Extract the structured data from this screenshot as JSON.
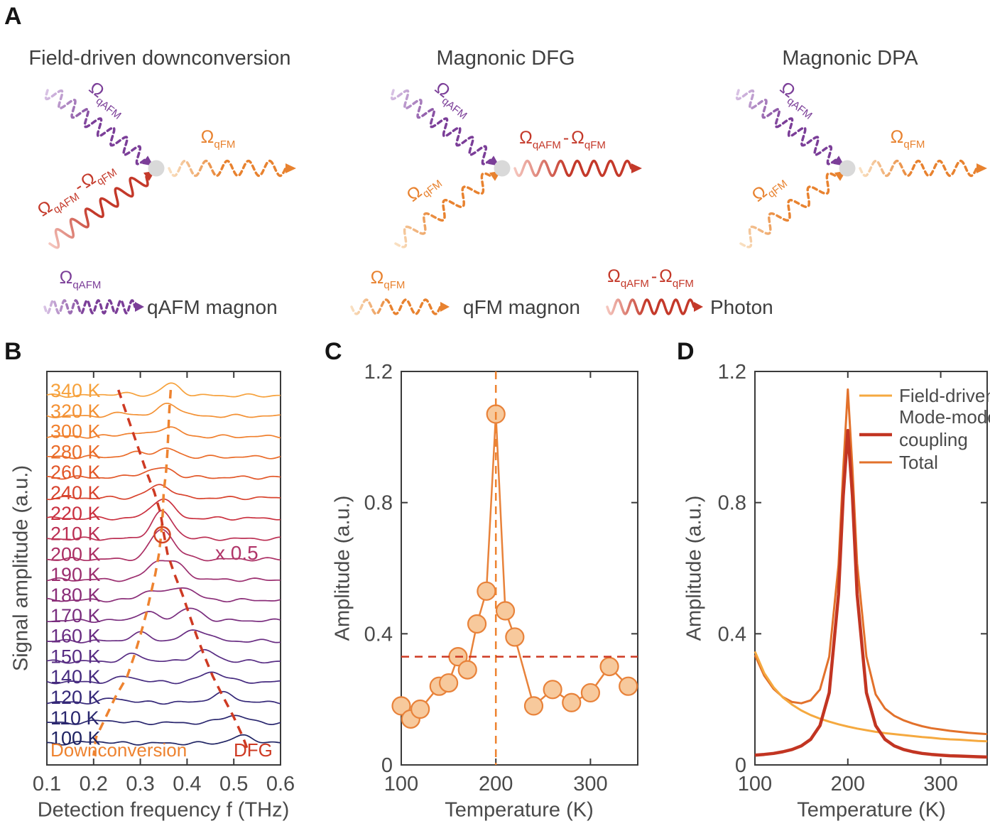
{
  "panels": {
    "a": "A",
    "b": "B",
    "c": "C",
    "d": "D"
  },
  "panelA": {
    "diagrams": [
      {
        "title": "Field-driven downconversion",
        "in_top": "qafm",
        "in_bottom": "photon",
        "out": "qfm"
      },
      {
        "title": "Magnonic DFG",
        "in_top": "qafm",
        "in_bottom": "qfm",
        "out": "photon"
      },
      {
        "title": "Magnonic DPA",
        "in_top": "qafm",
        "in_bottom": "qfm",
        "out": "qfm"
      }
    ],
    "sym": {
      "omega": "Ω",
      "sub_qafm": "qAFM",
      "sub_qfm": "qFM",
      "minus": "-"
    },
    "legend": [
      {
        "wave": "qafm",
        "text": "qAFM magnon"
      },
      {
        "wave": "qfm",
        "text": "qFM magnon"
      },
      {
        "wave": "photon",
        "text": "Photon"
      }
    ],
    "colors": {
      "qafm": "#7B3E98",
      "qafm_light": "#D9C3E5",
      "qfm": "#E8822F",
      "qfm_light": "#F9E0C2",
      "photon": "#C4392A",
      "photon_light": "#F5C6BE",
      "vertex": "#D9D9D9"
    }
  },
  "chart_data": [
    {
      "id": "B",
      "type": "line",
      "waterfall": true,
      "xlabel": "Detection frequency f (THz)",
      "ylabel": "Signal amplitude (a.u.)",
      "xlim": [
        0.1,
        0.6
      ],
      "xticks": [
        0.1,
        0.2,
        0.3,
        0.4,
        0.5,
        0.6
      ],
      "xtick_labels": [
        "0.1",
        "0.2",
        "0.3",
        "0.4",
        "0.5",
        "0.6"
      ],
      "tick_marks_x": [
        0.2,
        0.3,
        0.4,
        0.5
      ],
      "annotations": {
        "downconversion": "Downconversion",
        "dfg": "DFG",
        "scale_note": "x 0.5",
        "scale_note_applies_to": "200 K"
      },
      "guide_colors": {
        "downconversion": "#EE8330",
        "dfg": "#CE3A23"
      },
      "traces": [
        {
          "label": "340 K",
          "color": "#F6A13B",
          "dc_freq_THz": 0.365,
          "dfg_freq_THz": 0.253,
          "dc_amp": 0.56,
          "dfg_amp": 0.1
        },
        {
          "label": "320 K",
          "color": "#F39134",
          "dc_freq_THz": 0.362,
          "dfg_freq_THz": 0.268,
          "dc_amp": 0.63,
          "dfg_amp": 0.14
        },
        {
          "label": "300 K",
          "color": "#F0802E",
          "dc_freq_THz": 0.36,
          "dfg_freq_THz": 0.283,
          "dc_amp": 0.49,
          "dfg_amp": 0.17
        },
        {
          "label": "280 K",
          "color": "#EA6C29",
          "dc_freq_THz": 0.358,
          "dfg_freq_THz": 0.298,
          "dc_amp": 0.38,
          "dfg_amp": 0.21
        },
        {
          "label": "260 K",
          "color": "#E25728",
          "dc_freq_THz": 0.355,
          "dfg_freq_THz": 0.313,
          "dc_amp": 0.38,
          "dfg_amp": 0.24
        },
        {
          "label": "240 K",
          "color": "#D8432D",
          "dc_freq_THz": 0.35,
          "dfg_freq_THz": 0.33,
          "dc_amp": 0.42,
          "dfg_amp": 0.28
        },
        {
          "label": "220 K",
          "color": "#CA303F",
          "dc_freq_THz": 0.348,
          "dfg_freq_THz": 0.343,
          "dc_amp": 0.56,
          "dfg_amp": 0.42
        },
        {
          "label": "210 K",
          "color": "#BB2F53",
          "dc_freq_THz": 0.345,
          "dfg_freq_THz": 0.35,
          "dc_amp": 0.76,
          "dfg_amp": 0.56
        },
        {
          "label": "200 K",
          "color": "#AB2F64",
          "dc_freq_THz": 0.34,
          "dfg_freq_THz": 0.358,
          "dc_amp": 0.9,
          "dfg_amp": 0.69
        },
        {
          "label": "190 K",
          "color": "#9B2E6F",
          "dc_freq_THz": 0.332,
          "dfg_freq_THz": 0.373,
          "dc_amp": 0.69,
          "dfg_amp": 0.76
        },
        {
          "label": "180 K",
          "color": "#8A2D78",
          "dc_freq_THz": 0.322,
          "dfg_freq_THz": 0.39,
          "dc_amp": 0.49,
          "dfg_amp": 0.66
        },
        {
          "label": "170 K",
          "color": "#792D7E",
          "dc_freq_THz": 0.312,
          "dfg_freq_THz": 0.405,
          "dc_amp": 0.42,
          "dfg_amp": 0.59
        },
        {
          "label": "160 K",
          "color": "#682C82",
          "dc_freq_THz": 0.3,
          "dfg_freq_THz": 0.42,
          "dc_amp": 0.38,
          "dfg_amp": 0.56
        },
        {
          "label": "150 K",
          "color": "#572C83",
          "dc_freq_THz": 0.287,
          "dfg_freq_THz": 0.437,
          "dc_amp": 0.35,
          "dfg_amp": 0.52
        },
        {
          "label": "140 K",
          "color": "#452A7F",
          "dc_freq_THz": 0.272,
          "dfg_freq_THz": 0.455,
          "dc_amp": 0.28,
          "dfg_amp": 0.49
        },
        {
          "label": "120 K",
          "color": "#352878",
          "dc_freq_THz": 0.247,
          "dfg_freq_THz": 0.477,
          "dc_amp": 0.21,
          "dfg_amp": 0.45
        },
        {
          "label": "110 K",
          "color": "#29266E",
          "dc_freq_THz": 0.226,
          "dfg_freq_THz": 0.5,
          "dc_amp": 0.14,
          "dfg_amp": 0.38
        },
        {
          "label": "100 K",
          "color": "#1F2363",
          "dc_freq_THz": 0.205,
          "dfg_freq_THz": 0.52,
          "dc_amp": 0.1,
          "dfg_amp": 0.35
        }
      ]
    },
    {
      "id": "C",
      "type": "scatter",
      "xlabel": "Temperature (K)",
      "ylabel": "Amplitude (a.u.)",
      "xlim": [
        100,
        350
      ],
      "ylim": [
        0,
        1.2
      ],
      "xticks": [
        100,
        200,
        300
      ],
      "xtick_labels": [
        "100",
        "200",
        "300"
      ],
      "yticks": [
        0,
        0.4,
        0.8,
        1.2
      ],
      "ytick_labels": [
        "0",
        "0.4",
        "0.8",
        "1.2"
      ],
      "tick_marks_x": [
        200,
        300
      ],
      "tick_marks_y": [
        0.4,
        0.8
      ],
      "x": [
        100,
        110,
        120,
        140,
        150,
        160,
        170,
        180,
        190,
        200,
        210,
        220,
        240,
        260,
        280,
        300,
        320,
        340
      ],
      "y": [
        0.18,
        0.14,
        0.17,
        0.24,
        0.25,
        0.33,
        0.29,
        0.43,
        0.53,
        1.07,
        0.47,
        0.39,
        0.18,
        0.23,
        0.19,
        0.22,
        0.3,
        0.24
      ],
      "line_color": "#E8823A",
      "marker_fill": "#F7C99C",
      "marker_edge": "#E8823A",
      "vline": {
        "x": 200,
        "color": "#EE8330"
      },
      "hline": {
        "y": 0.33,
        "color": "#CE3A23"
      }
    },
    {
      "id": "D",
      "type": "line",
      "xlabel": "Temperature (K)",
      "ylabel": "Amplitude (a.u.)",
      "xlim": [
        100,
        350
      ],
      "ylim": [
        0,
        1.2
      ],
      "xticks": [
        100,
        200,
        300
      ],
      "xtick_labels": [
        "100",
        "200",
        "300"
      ],
      "yticks": [
        0,
        0.4,
        0.8,
        1.2
      ],
      "ytick_labels": [
        "0",
        "0.4",
        "0.8",
        "1.2"
      ],
      "tick_marks_x": [
        200,
        300
      ],
      "tick_marks_y": [
        0.4,
        0.8
      ],
      "series": [
        {
          "name": "Field-driven",
          "color": "#F5A93F",
          "width": 3,
          "x": [
            100,
            110,
            120,
            130,
            140,
            150,
            160,
            170,
            180,
            190,
            200,
            210,
            220,
            230,
            240,
            250,
            260,
            270,
            280,
            290,
            300,
            310,
            320,
            330,
            340,
            350
          ],
          "y": [
            0.346,
            0.28,
            0.237,
            0.206,
            0.184,
            0.166,
            0.152,
            0.141,
            0.132,
            0.124,
            0.117,
            0.111,
            0.106,
            0.101,
            0.097,
            0.094,
            0.091,
            0.088,
            0.085,
            0.083,
            0.08,
            0.078,
            0.077,
            0.075,
            0.073,
            0.072
          ]
        },
        {
          "name": "Mode-mode coupling",
          "color": "#C23522",
          "width": 4.5,
          "x": [
            100,
            110,
            120,
            130,
            140,
            150,
            160,
            170,
            180,
            190,
            195,
            200,
            205,
            210,
            220,
            230,
            240,
            250,
            260,
            270,
            280,
            290,
            300,
            310,
            320,
            330,
            340,
            350
          ],
          "y": [
            0.03,
            0.032,
            0.035,
            0.04,
            0.047,
            0.058,
            0.078,
            0.12,
            0.22,
            0.52,
            0.82,
            1.02,
            0.82,
            0.52,
            0.22,
            0.12,
            0.078,
            0.058,
            0.047,
            0.04,
            0.035,
            0.032,
            0.03,
            0.028,
            0.027,
            0.026,
            0.025,
            0.024
          ]
        },
        {
          "name": "Total",
          "color": "#E2712B",
          "width": 3,
          "x": [
            100,
            110,
            120,
            130,
            140,
            150,
            160,
            170,
            180,
            190,
            195,
            200,
            205,
            210,
            220,
            230,
            240,
            250,
            260,
            270,
            280,
            290,
            300,
            310,
            320,
            330,
            340,
            350
          ],
          "y": [
            0.335,
            0.272,
            0.232,
            0.207,
            0.192,
            0.188,
            0.197,
            0.23,
            0.33,
            0.61,
            0.9,
            1.145,
            0.905,
            0.615,
            0.33,
            0.215,
            0.172,
            0.15,
            0.136,
            0.126,
            0.118,
            0.112,
            0.108,
            0.104,
            0.101,
            0.098,
            0.096,
            0.094
          ]
        }
      ],
      "legend": [
        {
          "series": "Field-driven",
          "lines": [
            "Field-driven"
          ]
        },
        {
          "series": "Mode-mode coupling",
          "lines": [
            "Mode-mode",
            "coupling"
          ]
        },
        {
          "series": "Total",
          "lines": [
            "Total"
          ]
        }
      ]
    }
  ]
}
